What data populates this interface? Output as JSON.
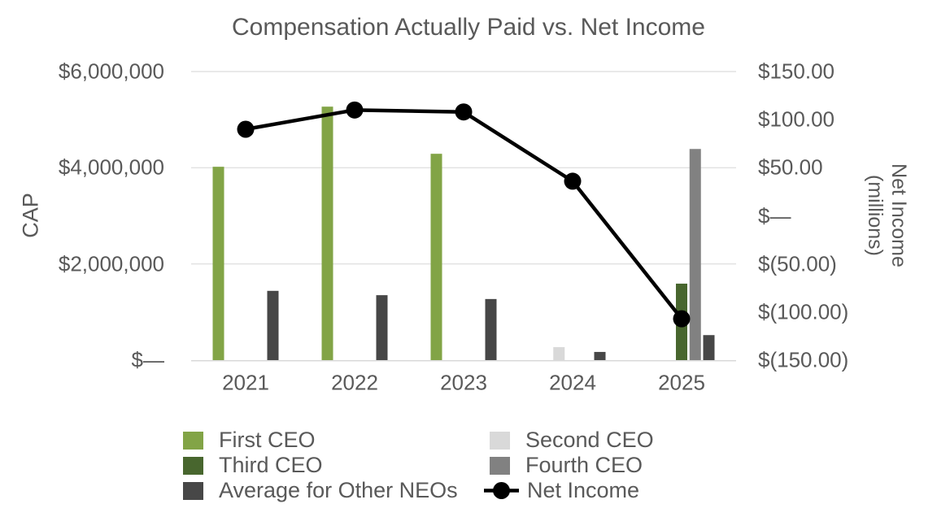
{
  "chart_data": {
    "type": "bar+line",
    "title": "Compensation Actually Paid vs. Net Income",
    "categories": [
      "2021",
      "2022",
      "2023",
      "2024",
      "2025"
    ],
    "left_axis": {
      "label": "CAP",
      "min": 0,
      "max": 6000000,
      "ticks": [
        {
          "label": "$6,000,000",
          "value": 6000000
        },
        {
          "label": "$4,000,000",
          "value": 4000000
        },
        {
          "label": "$2,000,000",
          "value": 2000000
        },
        {
          "label": "$—",
          "value": 0
        }
      ]
    },
    "right_axis": {
      "label": "Net Income (millions)",
      "label_lines": [
        "Net Income",
        "(millions)"
      ],
      "min": -150,
      "max": 150,
      "ticks": [
        {
          "label": "$150.00",
          "value": 150
        },
        {
          "label": "$100.00",
          "value": 100
        },
        {
          "label": "$50.00",
          "value": 50
        },
        {
          "label": "$—",
          "value": 0
        },
        {
          "label": "$(50.00)",
          "value": -50
        },
        {
          "label": "$(100.00)",
          "value": -100
        },
        {
          "label": "$(150.00)",
          "value": -150
        }
      ]
    },
    "bar_series": [
      {
        "name": "First CEO",
        "color": "#82A446",
        "values": [
          4020000,
          5270000,
          4290000,
          null,
          null
        ]
      },
      {
        "name": "Second CEO",
        "color": "#D9D9D9",
        "values": [
          null,
          null,
          null,
          270000,
          null
        ]
      },
      {
        "name": "Third CEO",
        "color": "#48662E",
        "values": [
          null,
          null,
          null,
          null,
          1590000
        ]
      },
      {
        "name": "Fourth CEO",
        "color": "#818181",
        "values": [
          null,
          null,
          null,
          null,
          4390000
        ]
      },
      {
        "name": "Average for Other NEOs",
        "color": "#474747",
        "values": [
          1440000,
          1350000,
          1270000,
          170000,
          520000
        ]
      }
    ],
    "line_series": {
      "name": "Net Income",
      "color": "#000000",
      "values": [
        90,
        110,
        108,
        36,
        -107
      ]
    },
    "legend": {
      "position": "bottom",
      "columns": 2
    },
    "grid": true,
    "grid_color": "#E2E2E2",
    "axis_line_color": "#D9D9D9",
    "text_color": "#595959"
  }
}
